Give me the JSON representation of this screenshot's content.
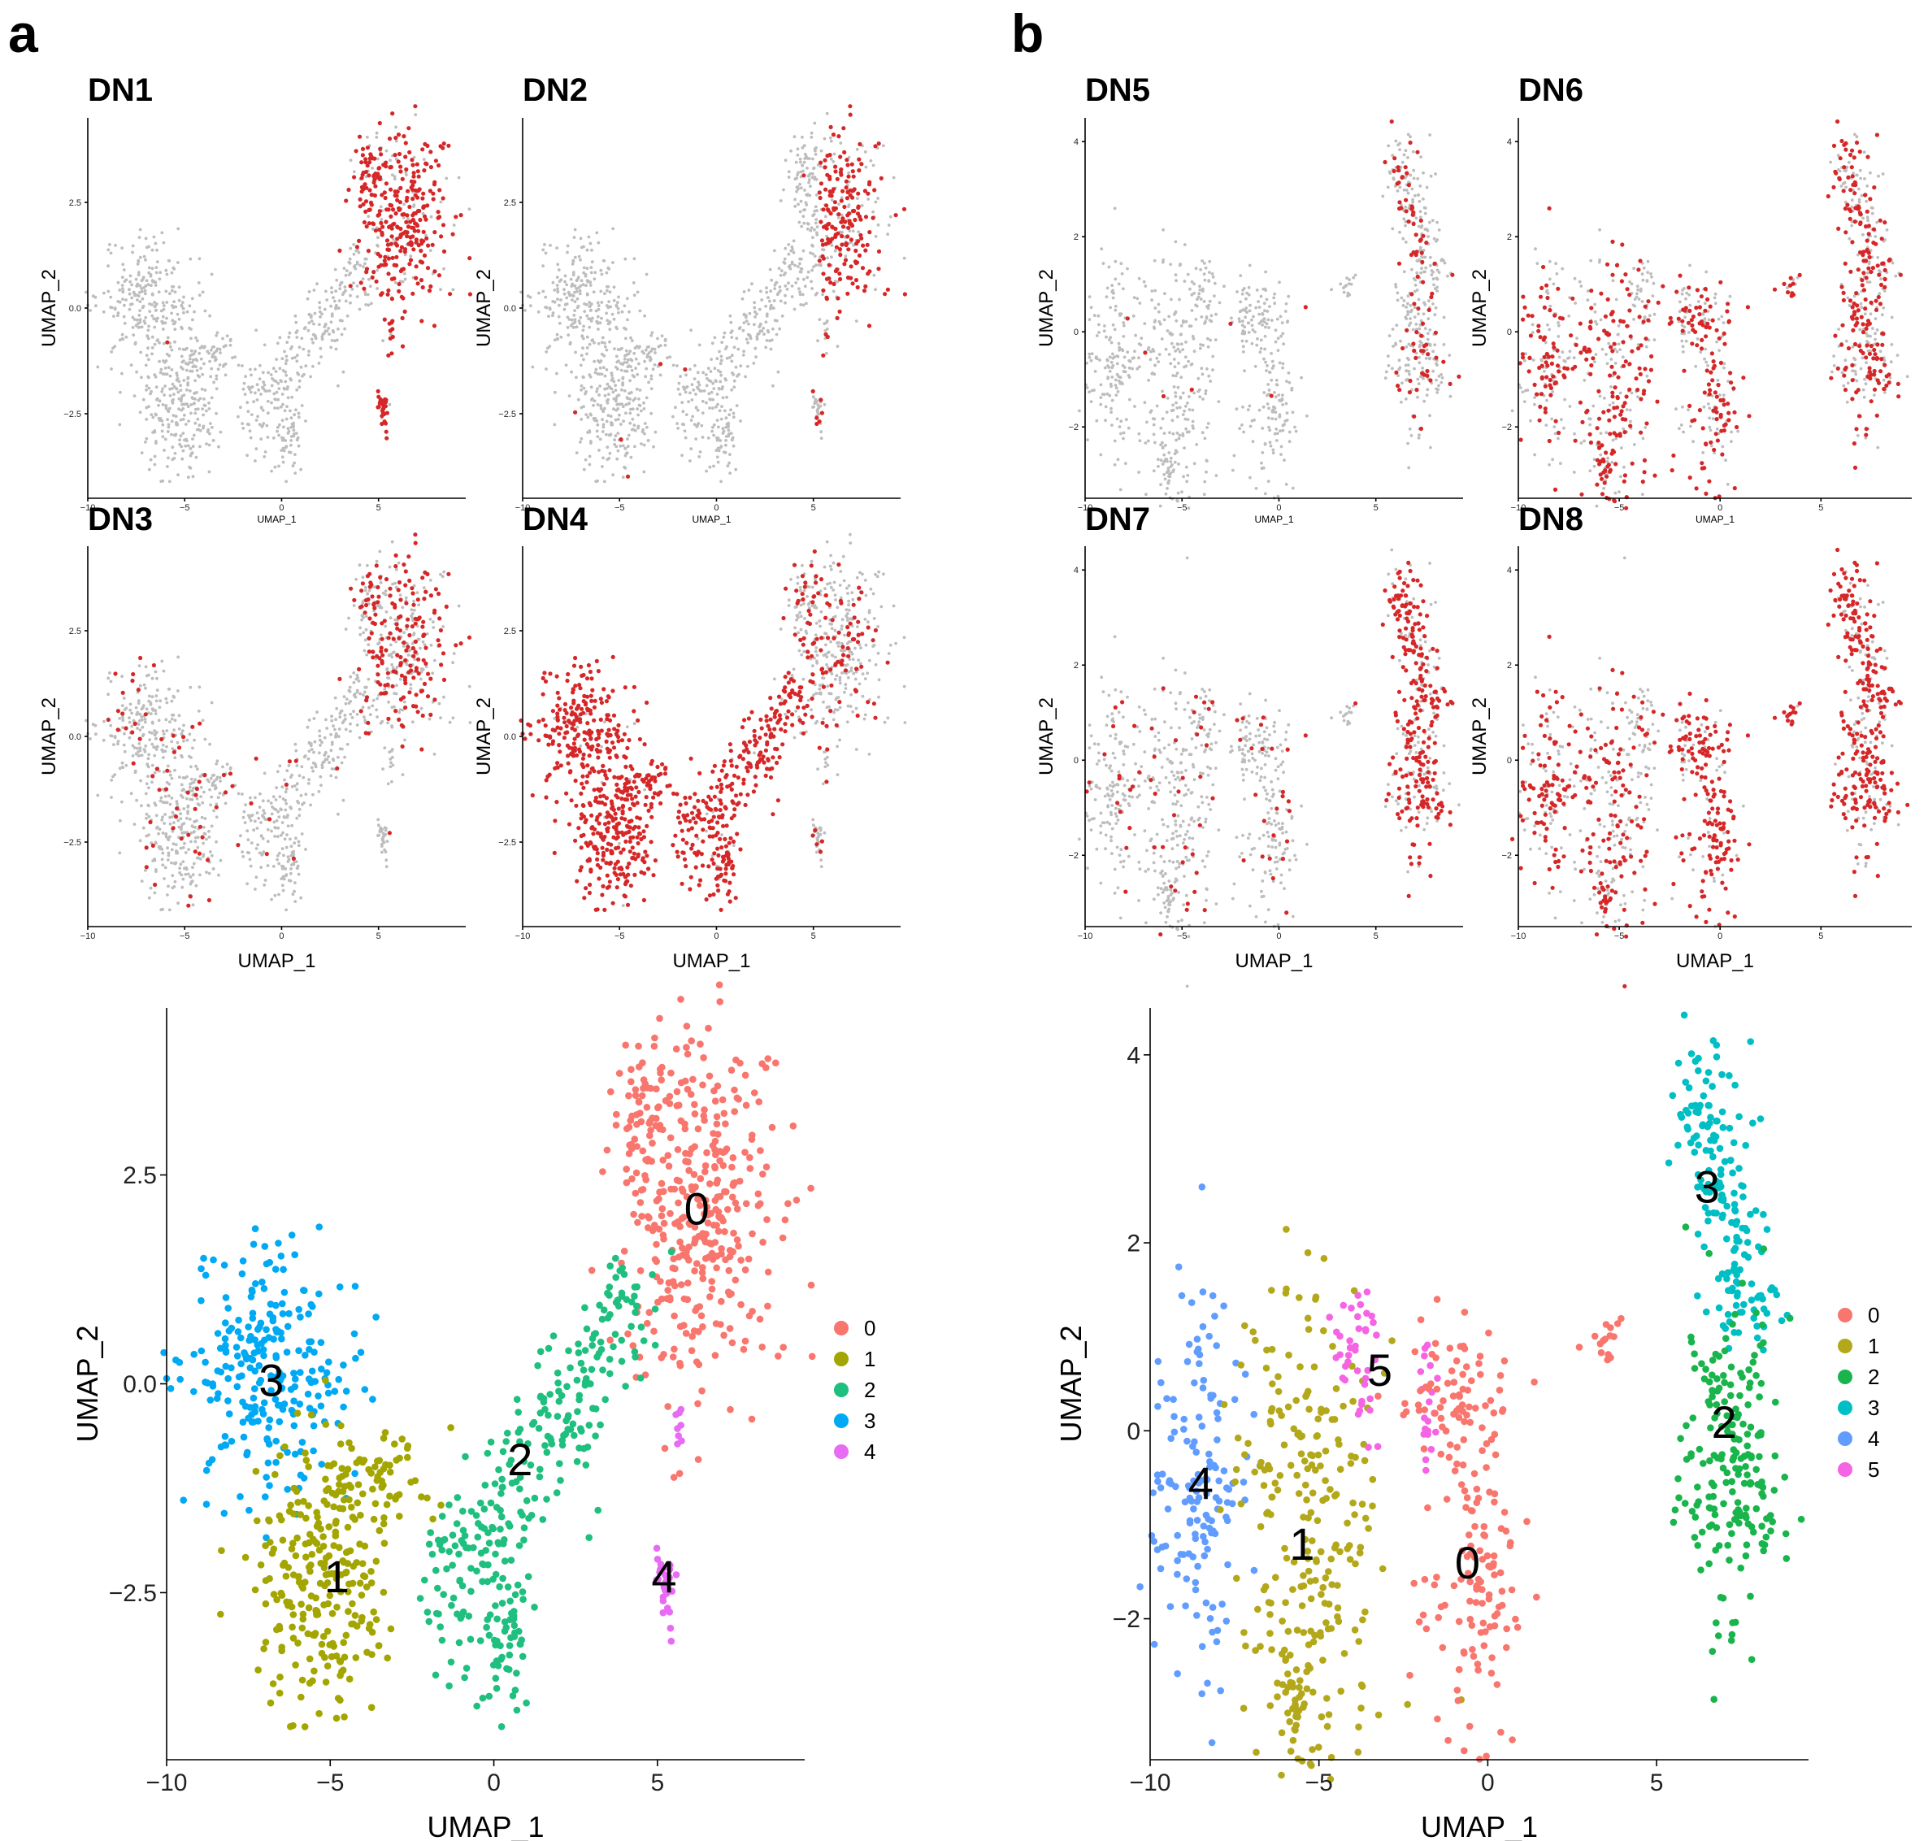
{
  "figure": {
    "panel_letters": [
      "a",
      "b"
    ]
  },
  "colors": {
    "highlight": "#d62728",
    "background_cell": "#bdbdbd",
    "cluster_palette": [
      "#f8766d",
      "#b3a81a",
      "#19b44c",
      "#00bfc4",
      "#619cff",
      "#f564e3"
    ],
    "cluster_palette_a": [
      "#f8766d",
      "#a3a500",
      "#1fbf7f",
      "#00a9f4",
      "#e76bf3"
    ]
  },
  "chart_data": [
    {
      "id": "DN1",
      "panel": "a",
      "type": "scatter",
      "title": "DN1",
      "xlabel": "UMAP_1",
      "ylabel": "UMAP_2",
      "xlim": [
        -10,
        9.5
      ],
      "ylim": [
        -4.5,
        4.5
      ],
      "xticks": [
        "-10",
        "-5",
        "0",
        "5"
      ],
      "yticks": [
        "-2.5",
        "0.0",
        "2.5"
      ],
      "highlight": "cluster0_strong"
    },
    {
      "id": "DN2",
      "panel": "a",
      "type": "scatter",
      "title": "DN2",
      "xlabel": "UMAP_1",
      "ylabel": "UMAP_2",
      "xlim": [
        -10,
        9.5
      ],
      "ylim": [
        -4.5,
        4.5
      ],
      "xticks": [
        "-10",
        "-5",
        "0",
        "5"
      ],
      "yticks": [
        "-2.5",
        "0.0",
        "2.5"
      ],
      "highlight": "cluster0_medium"
    },
    {
      "id": "DN3",
      "panel": "a",
      "type": "scatter",
      "title": "DN3",
      "xlabel": "UMAP_1",
      "ylabel": "UMAP_2",
      "xlim": [
        -10,
        9.5
      ],
      "ylim": [
        -4.5,
        4.5
      ],
      "xticks": [
        "-10",
        "-5",
        "0",
        "5"
      ],
      "yticks": [
        "-2.5",
        "0.0",
        "2.5"
      ],
      "highlight": "sparse_mixed"
    },
    {
      "id": "DN4",
      "panel": "a",
      "type": "scatter",
      "title": "DN4",
      "xlabel": "UMAP_1",
      "ylabel": "UMAP_2",
      "xlim": [
        -10,
        9.5
      ],
      "ylim": [
        -4.5,
        4.5
      ],
      "xticks": [
        "-10",
        "-5",
        "0",
        "5"
      ],
      "yticks": [
        "-2.5",
        "0.0",
        "2.5"
      ],
      "highlight": "clusters123"
    },
    {
      "id": "DN5",
      "panel": "b",
      "type": "scatter",
      "title": "DN5",
      "xlabel": "UMAP_1",
      "ylabel": "UMAP_2",
      "xlim": [
        -10,
        9.5
      ],
      "ylim": [
        -3.5,
        4.5
      ],
      "xticks": [
        "-10",
        "-5",
        "0",
        "5"
      ],
      "yticks": [
        "-2",
        "0",
        "2",
        "4"
      ],
      "highlight": "sparse_right"
    },
    {
      "id": "DN6",
      "panel": "b",
      "type": "scatter",
      "title": "DN6",
      "xlabel": "UMAP_1",
      "ylabel": "UMAP_2",
      "xlim": [
        -10,
        9.5
      ],
      "ylim": [
        -3.5,
        4.5
      ],
      "xticks": [
        "-10",
        "-5",
        "0",
        "5"
      ],
      "yticks": [
        "-2",
        "0",
        "2",
        "4"
      ],
      "highlight": "broad"
    },
    {
      "id": "DN7",
      "panel": "b",
      "type": "scatter",
      "title": "DN7",
      "xlabel": "UMAP_1",
      "ylabel": "UMAP_2",
      "xlim": [
        -10,
        9.5
      ],
      "ylim": [
        -3.5,
        4.5
      ],
      "xticks": [
        "-10",
        "-5",
        "0",
        "5"
      ],
      "yticks": [
        "-2",
        "0",
        "2",
        "4"
      ],
      "highlight": "right_medium"
    },
    {
      "id": "DN8",
      "panel": "b",
      "type": "scatter",
      "title": "DN8",
      "xlabel": "UMAP_1",
      "ylabel": "UMAP_2",
      "xlim": [
        -10,
        9.5
      ],
      "ylim": [
        -3.5,
        4.5
      ],
      "xticks": [
        "-10",
        "-5",
        "0",
        "5"
      ],
      "yticks": [
        "-2",
        "0",
        "2",
        "4"
      ],
      "highlight": "broad_strong"
    },
    {
      "id": "clusters_a",
      "panel": "a",
      "type": "scatter",
      "title": "",
      "xlabel": "UMAP_1",
      "ylabel": "UMAP_2",
      "xlim": [
        -10,
        9.5
      ],
      "ylim": [
        -4.5,
        4.5
      ],
      "xticks": [
        "-10",
        "-5",
        "0",
        "5"
      ],
      "yticks": [
        "-2.5",
        "0.0",
        "2.5"
      ],
      "legend": [
        "0",
        "1",
        "2",
        "3",
        "4"
      ],
      "clusters": [
        {
          "id": "0",
          "label": "0",
          "cx": 6.2,
          "cy": 2.1
        },
        {
          "id": "1",
          "label": "1",
          "cx": -4.8,
          "cy": -2.3
        },
        {
          "id": "2",
          "label": "2",
          "cx": 0.8,
          "cy": -0.9
        },
        {
          "id": "3",
          "label": "3",
          "cx": -6.8,
          "cy": 0.05
        },
        {
          "id": "4",
          "label": "4",
          "cx": 5.2,
          "cy": -2.3
        }
      ]
    },
    {
      "id": "clusters_b",
      "panel": "b",
      "type": "scatter",
      "title": "",
      "xlabel": "UMAP_1",
      "ylabel": "UMAP_2",
      "xlim": [
        -10,
        9.5
      ],
      "ylim": [
        -3.5,
        4.5
      ],
      "xticks": [
        "-10",
        "-5",
        "0",
        "5"
      ],
      "yticks": [
        "-2",
        "0",
        "2",
        "4"
      ],
      "legend": [
        "0",
        "1",
        "2",
        "3",
        "4",
        "5"
      ],
      "clusters": [
        {
          "id": "0",
          "label": "0",
          "cx": -0.6,
          "cy": -1.4
        },
        {
          "id": "1",
          "label": "1",
          "cx": -5.5,
          "cy": -1.2
        },
        {
          "id": "2",
          "label": "2",
          "cx": 7.0,
          "cy": 0.1
        },
        {
          "id": "3",
          "label": "3",
          "cx": 6.5,
          "cy": 2.6
        },
        {
          "id": "4",
          "label": "4",
          "cx": -8.5,
          "cy": -0.55
        },
        {
          "id": "5",
          "label": "5",
          "cx": -3.2,
          "cy": 0.65
        }
      ]
    }
  ]
}
